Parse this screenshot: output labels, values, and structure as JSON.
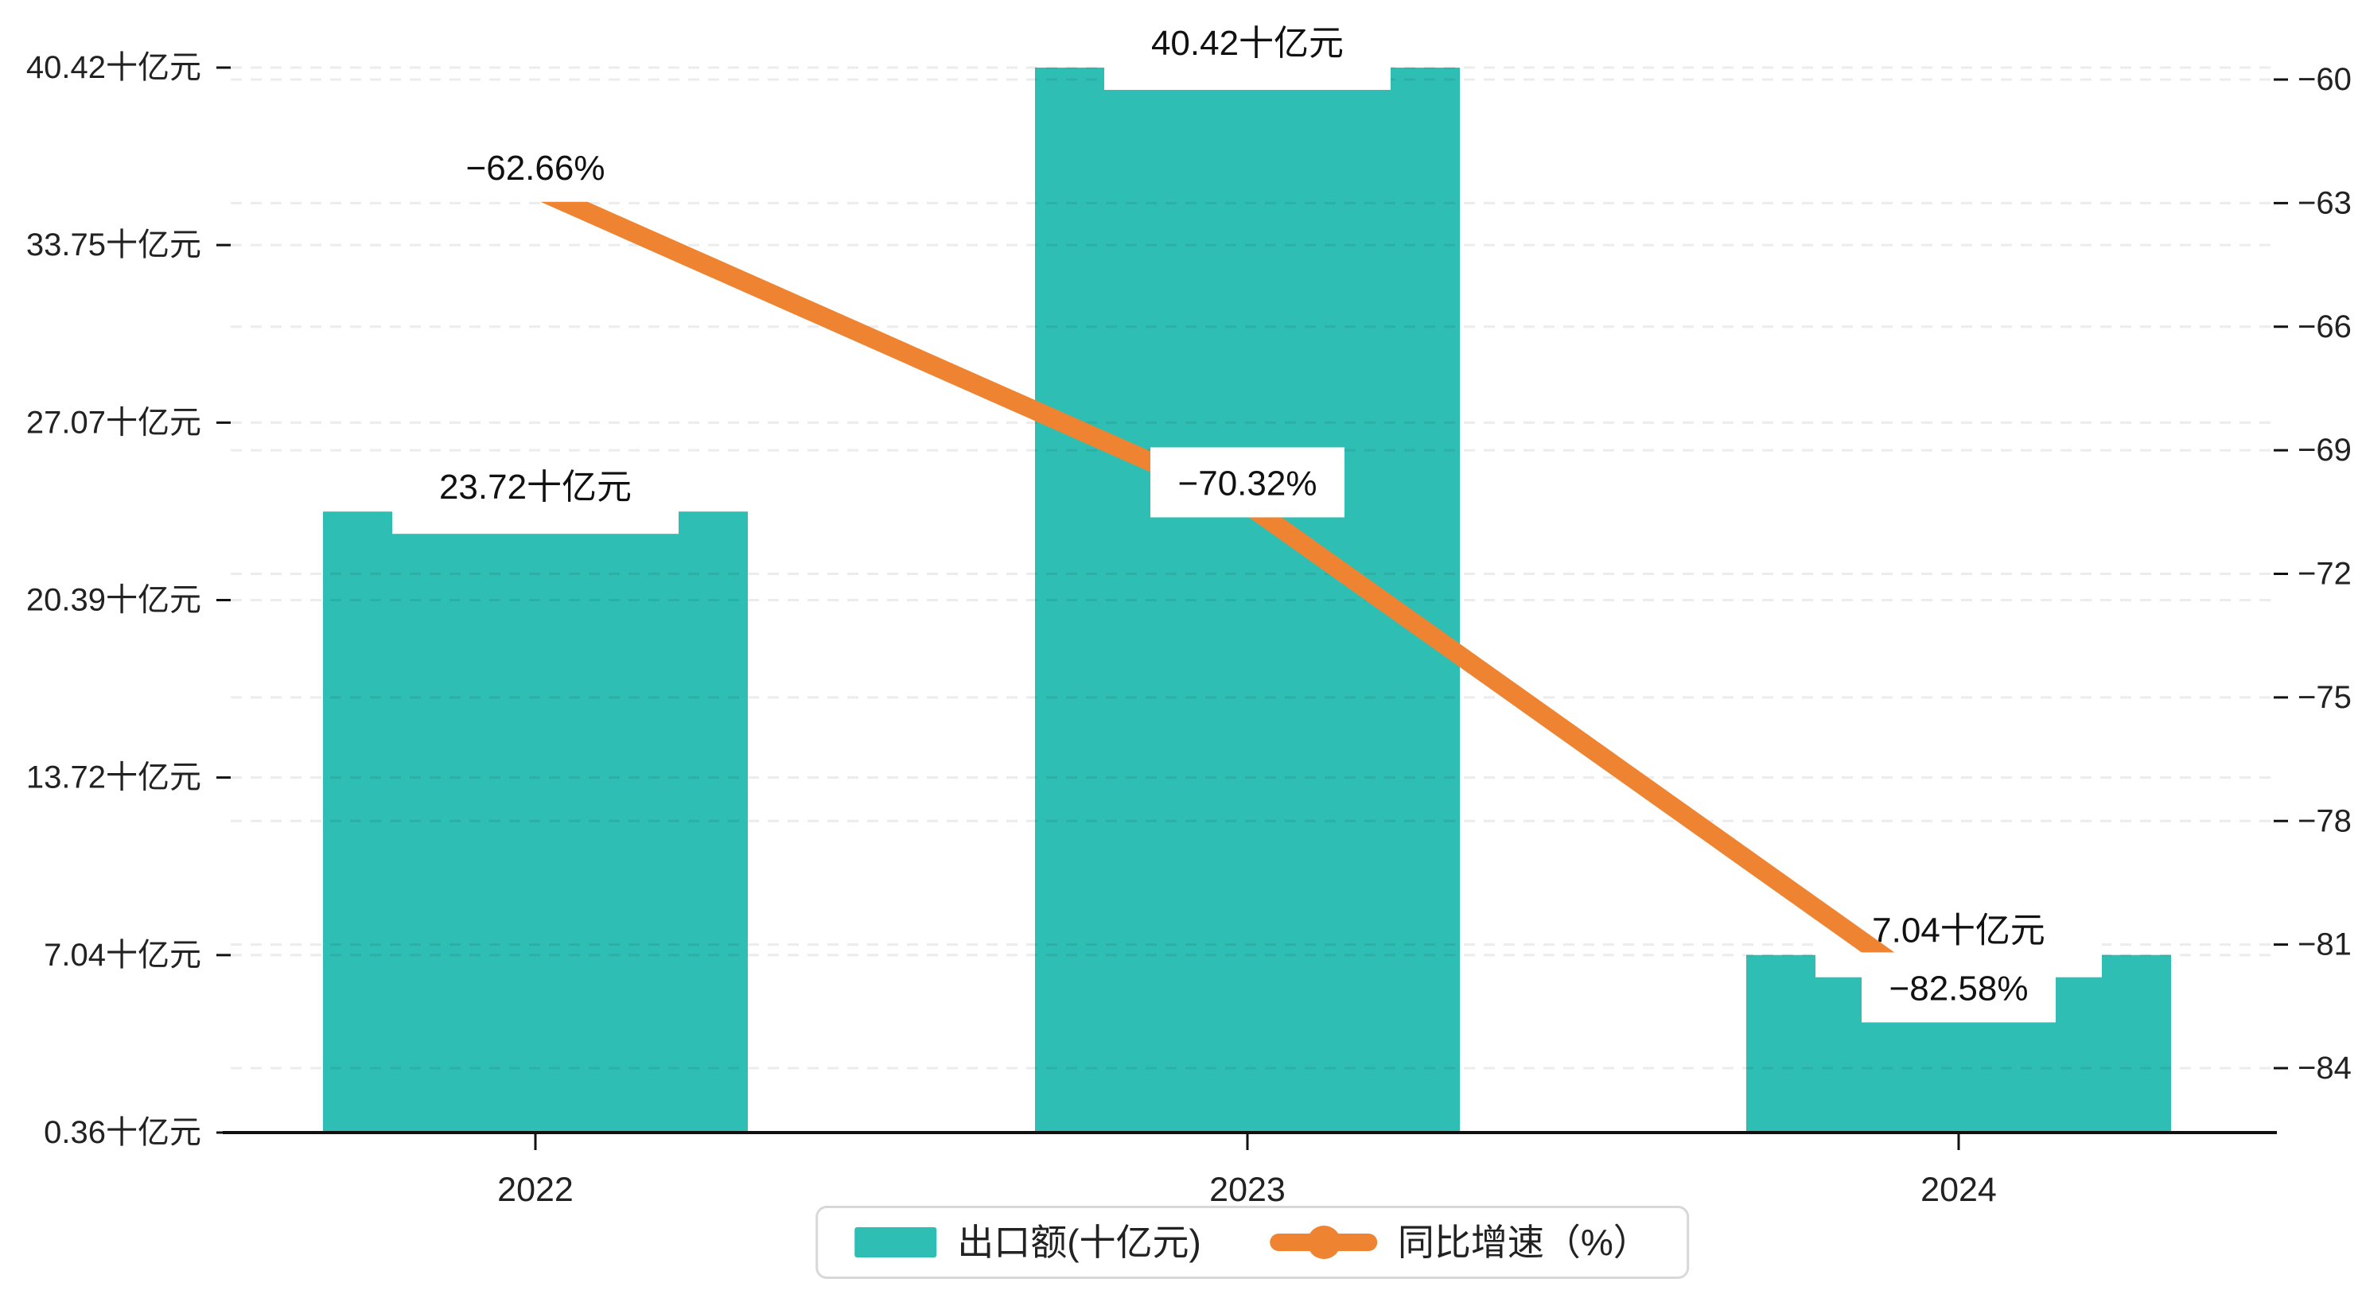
{
  "chart_data": {
    "type": "bar",
    "subtype": "bar-line-combo",
    "title": "",
    "categories": [
      "2022",
      "2023",
      "2024"
    ],
    "series": [
      {
        "name": "出口额(十亿元)",
        "type": "bar",
        "axis": "left",
        "values": [
          23.72,
          40.42,
          7.04
        ],
        "data_labels": [
          "23.72十亿元",
          "40.42十亿元",
          "7.04十亿元"
        ],
        "color": "#2fbeb3"
      },
      {
        "name": "同比增速（%）",
        "type": "line",
        "axis": "right",
        "values": [
          -62.66,
          -70.32,
          -82.58
        ],
        "data_labels": [
          "−62.66%",
          "−70.32%",
          "−82.58%"
        ],
        "color": "#ee8432"
      }
    ],
    "left_axis": {
      "min": 0.36,
      "max": 40.42,
      "tick_labels": [
        "40.42十亿元",
        "33.75十亿元",
        "27.07十亿元",
        "20.39十亿元",
        "13.72十亿元",
        "7.04十亿元",
        "0.36十亿元"
      ],
      "tick_values": [
        40.42,
        33.75,
        27.07,
        20.39,
        13.72,
        7.04,
        0.36
      ]
    },
    "right_axis": {
      "min": -84,
      "max": -60,
      "tick_step": 3,
      "tick_labels": [
        "−60",
        "−63",
        "−66",
        "−69",
        "−72",
        "−75",
        "−78",
        "−81",
        "−84"
      ],
      "tick_values": [
        -60,
        -63,
        -66,
        -69,
        -72,
        -75,
        -78,
        -81,
        -84
      ]
    },
    "grid": true,
    "legend_position": "bottom"
  },
  "legend": {
    "items": [
      {
        "label": "出口额(十亿元)",
        "marker": "bar-swatch",
        "color": "#2fbeb3"
      },
      {
        "label": "同比增速（%）",
        "marker": "line-swatch",
        "color": "#ee8432"
      }
    ]
  },
  "colors": {
    "bar": "#2fbeb3",
    "line": "#ee8432",
    "text": "#222222",
    "axis": "#111111",
    "grid": "rgba(17,17,17,0.08)",
    "label_bg": "#ffffff",
    "legend_border": "#d8d8d8"
  }
}
